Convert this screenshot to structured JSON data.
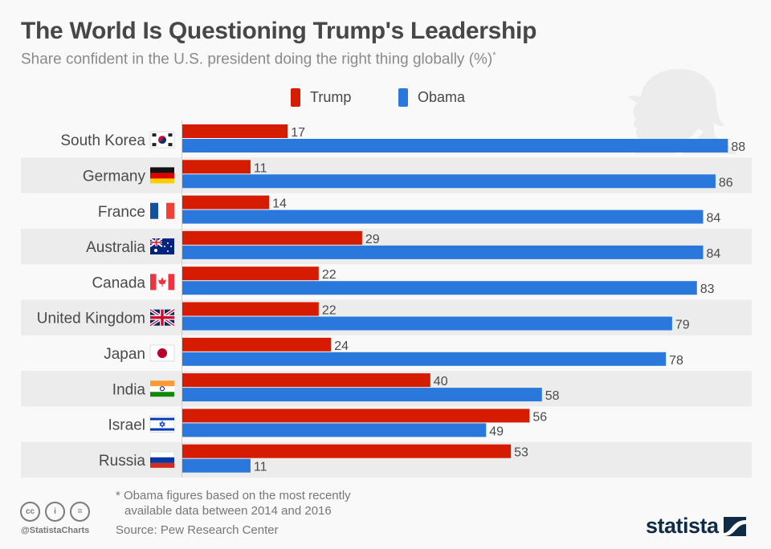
{
  "header": {
    "title": "The World Is Questioning Trump's Leadership",
    "subtitle": "Share confident in the U.S. president doing the right thing globally (%)",
    "subtitle_mark": "*"
  },
  "legend": [
    {
      "label": "Trump",
      "color": "#d61c00"
    },
    {
      "label": "Obama",
      "color": "#2a78dc"
    }
  ],
  "chart_data": {
    "type": "bar",
    "orientation": "horizontal",
    "title": "The World Is Questioning Trump's Leadership",
    "subtitle": "Share confident in the U.S. president doing the right thing globally (%)*",
    "xlabel": "",
    "ylabel": "",
    "xlim": [
      0,
      90
    ],
    "grid": false,
    "legend_position": "top-center",
    "categories": [
      "South Korea",
      "Germany",
      "France",
      "Australia",
      "Canada",
      "United Kingdom",
      "Japan",
      "India",
      "Israel",
      "Russia"
    ],
    "flags": [
      "south-korea-flag-icon",
      "germany-flag-icon",
      "france-flag-icon",
      "australia-flag-icon",
      "canada-flag-icon",
      "united-kingdom-flag-icon",
      "japan-flag-icon",
      "india-flag-icon",
      "israel-flag-icon",
      "russia-flag-icon"
    ],
    "series": [
      {
        "name": "Trump",
        "color": "#d61c00",
        "values": [
          17,
          11,
          14,
          29,
          22,
          22,
          24,
          40,
          56,
          53
        ]
      },
      {
        "name": "Obama",
        "color": "#2a78dc",
        "values": [
          88,
          86,
          84,
          84,
          83,
          79,
          78,
          58,
          49,
          11
        ]
      }
    ]
  },
  "footer": {
    "footnote_line1": "* Obama figures based on the most recently",
    "footnote_line2": "available data between 2014 and 2016",
    "source": "Source: Pew Research Center",
    "handle": "@StatistaCharts",
    "cc_icons": [
      "cc",
      "i",
      "="
    ],
    "brand": "statista"
  }
}
